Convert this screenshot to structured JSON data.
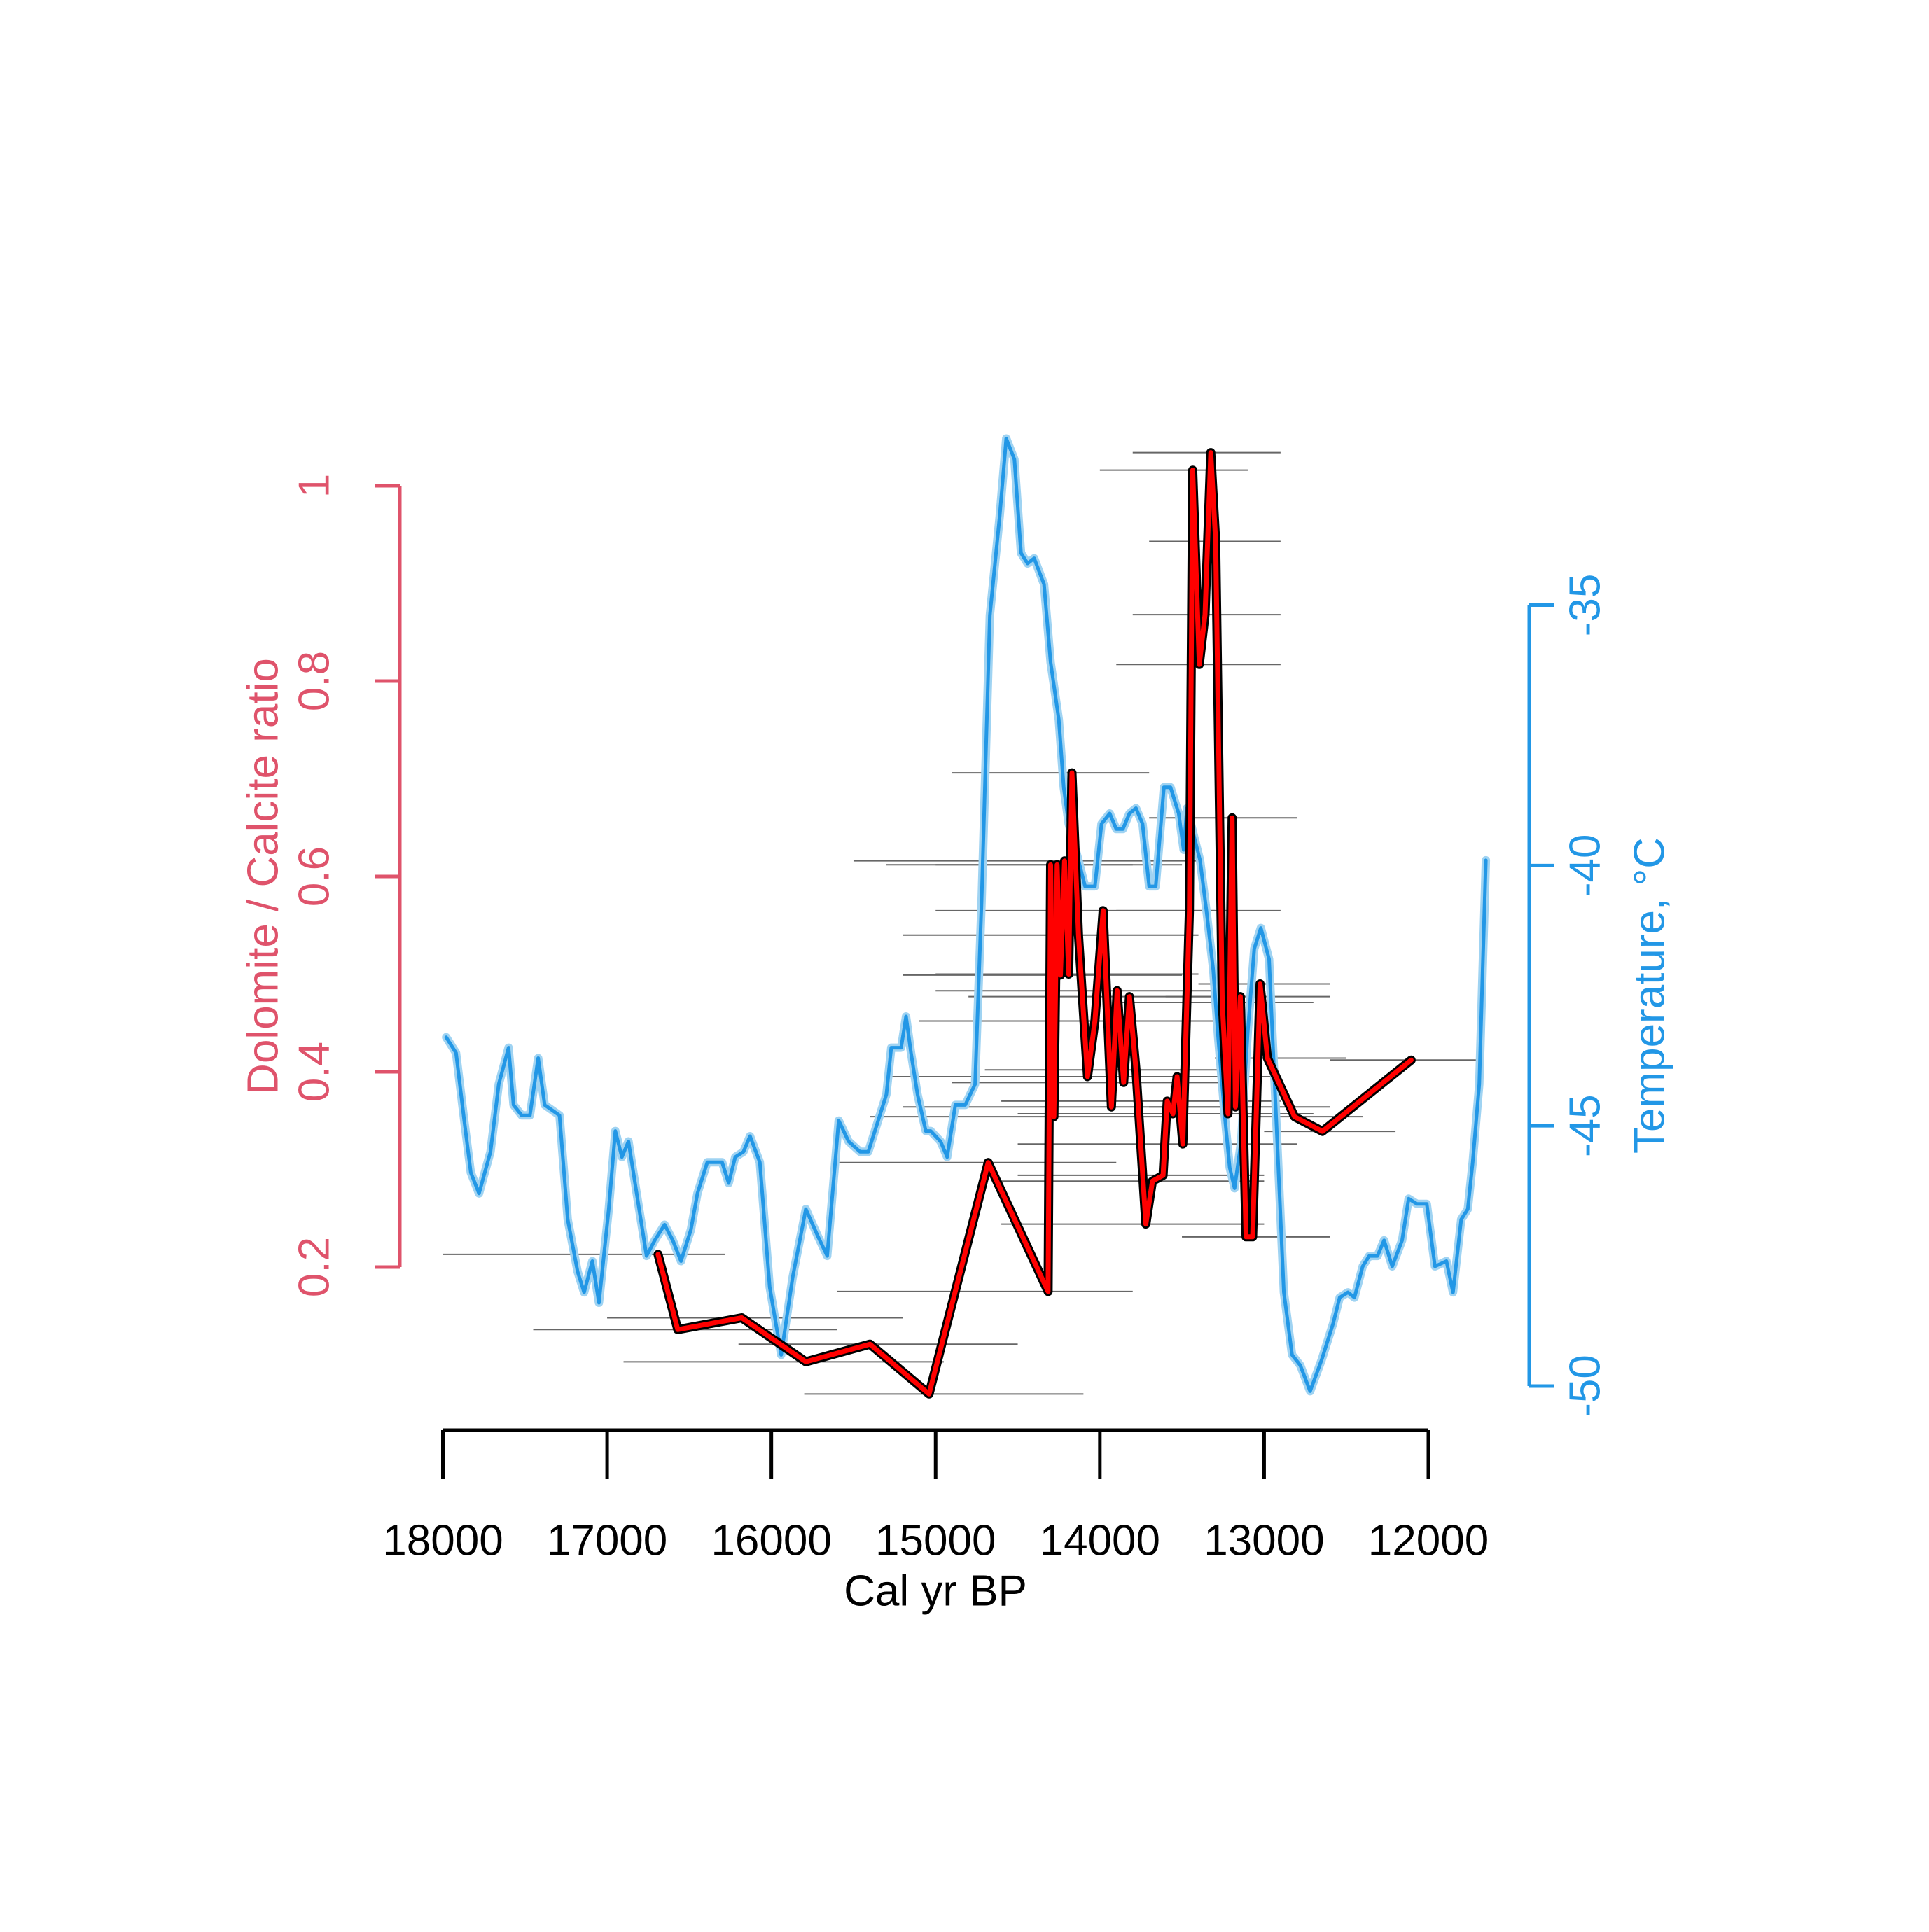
{
  "chart_data": {
    "type": "line",
    "xlabel": "Cal yr BP",
    "ylabel": "Dolomite / Calcite ratio",
    "y2label": "Temperature, °C",
    "xlim": [
      18000,
      12000
    ],
    "xticks": [
      18000,
      17000,
      16000,
      15000,
      14000,
      13000,
      12000
    ],
    "ylim": [
      0.2,
      1
    ],
    "yticks": [
      0.2,
      0.4,
      0.6,
      0.8,
      1
    ],
    "y2lim": [
      -50,
      -35
    ],
    "y2ticks": [
      -50,
      -45,
      -40,
      -35
    ],
    "ycolor": "#DF536B",
    "y2color": "#2297E6",
    "xcolor": "#000000",
    "errorbar_color": "#666666",
    "series": [
      {
        "axis": "y2",
        "color": "#2297E6",
        "outline": "#9fd3f2",
        "x": [
          17980,
          17920,
          17870,
          17830,
          17780,
          17710,
          17660,
          17600,
          17570,
          17520,
          17470,
          17420,
          17380,
          17290,
          17240,
          17180,
          17140,
          17090,
          17050,
          16990,
          16950,
          16910,
          16870,
          16820,
          16760,
          16710,
          16650,
          16600,
          16550,
          16490,
          16450,
          16390,
          16350,
          16300,
          16260,
          16220,
          16170,
          16130,
          16070,
          16010,
          15940,
          15870,
          15790,
          15720,
          15660,
          15590,
          15530,
          15460,
          15410,
          15360,
          15300,
          15270,
          15210,
          15180,
          15150,
          15110,
          15060,
          15030,
          14970,
          14930,
          14880,
          14820,
          14760,
          14720,
          14670,
          14610,
          14570,
          14520,
          14480,
          14440,
          14400,
          14340,
          14300,
          14250,
          14220,
          14190,
          14130,
          14090,
          14030,
          13990,
          13940,
          13900,
          13860,
          13820,
          13780,
          13740,
          13700,
          13660,
          13610,
          13570,
          13520,
          13490,
          13470,
          13430,
          13390,
          13350,
          13310,
          13280,
          13240,
          13210,
          13180,
          13140,
          13100,
          13060,
          13020,
          12970,
          12930,
          12880,
          12830,
          12780,
          12720,
          12650,
          12580,
          12540,
          12490,
          12450,
          12400,
          12360,
          12310,
          12270,
          12220,
          12160,
          12120,
          12070,
          12010,
          11960,
          11890,
          11850,
          11800,
          11760,
          11730,
          11690,
          11650
        ],
        "values": [
          -43.3,
          -43.6,
          -44.9,
          -45.9,
          -46.3,
          -45.5,
          -44.2,
          -43.5,
          -44.6,
          -44.8,
          -44.8,
          -43.7,
          -44.6,
          -44.8,
          -46.8,
          -47.8,
          -48.2,
          -47.6,
          -48.4,
          -46.6,
          -45.1,
          -45.6,
          -45.3,
          -46.3,
          -47.5,
          -47.2,
          -46.9,
          -47.2,
          -47.6,
          -47.0,
          -46.3,
          -45.7,
          -45.7,
          -45.7,
          -46.1,
          -45.6,
          -45.5,
          -45.2,
          -45.7,
          -48.1,
          -49.4,
          -47.9,
          -46.6,
          -47.1,
          -47.5,
          -44.9,
          -45.3,
          -45.5,
          -45.5,
          -45.0,
          -44.4,
          -43.5,
          -43.5,
          -42.9,
          -43.6,
          -44.4,
          -45.1,
          -45.1,
          -45.3,
          -45.6,
          -44.6,
          -44.6,
          -44.2,
          -40.7,
          -35.2,
          -33.3,
          -31.8,
          -32.2,
          -34.0,
          -34.2,
          -34.1,
          -34.6,
          -36.1,
          -37.2,
          -38.5,
          -39.2,
          -39.9,
          -40.4,
          -40.4,
          -39.2,
          -39.0,
          -39.3,
          -39.3,
          -39.0,
          -38.9,
          -39.2,
          -40.4,
          -40.4,
          -38.5,
          -38.5,
          -39.0,
          -39.7,
          -38.9,
          -39.4,
          -39.9,
          -40.9,
          -42.0,
          -43.3,
          -44.8,
          -45.8,
          -46.2,
          -45.3,
          -43.2,
          -41.6,
          -41.2,
          -41.8,
          -44.6,
          -48.2,
          -49.4,
          -49.6,
          -50.1,
          -49.5,
          -48.8,
          -48.3,
          -48.2,
          -48.3,
          -47.7,
          -47.5,
          -47.5,
          -47.2,
          -47.7,
          -47.2,
          -46.4,
          -46.5,
          -46.5,
          -47.7,
          -47.6,
          -48.2,
          -46.8,
          -46.6,
          -45.7,
          -44.2,
          -39.9
        ]
      },
      {
        "color": "#ff0000",
        "outline": "#000000",
        "x": [
          16690,
          16570,
          16180,
          15790,
          15400,
          15040,
          14680,
          14315,
          14300,
          14280,
          14260,
          14240,
          14215,
          14190,
          14170,
          14130,
          14075,
          14030,
          13980,
          13930,
          13895,
          13855,
          13820,
          13780,
          13720,
          13680,
          13615,
          13590,
          13555,
          13530,
          13495,
          13455,
          13435,
          13395,
          13360,
          13325,
          13295,
          13255,
          13220,
          13195,
          13175,
          13145,
          13110,
          13070,
          13025,
          12980,
          12815,
          12645,
          12105
        ],
        "values": [
          0.213,
          0.136,
          0.148,
          0.103,
          0.121,
          0.07,
          0.307,
          0.175,
          0.612,
          0.354,
          0.612,
          0.499,
          0.616,
          0.5,
          0.706,
          0.54,
          0.395,
          0.452,
          0.565,
          0.364,
          0.483,
          0.389,
          0.477,
          0.402,
          0.244,
          0.288,
          0.294,
          0.37,
          0.357,
          0.395,
          0.326,
          0.565,
          1.016,
          0.817,
          0.868,
          1.034,
          0.943,
          0.471,
          0.357,
          0.66,
          0.364,
          0.477,
          0.231,
          0.231,
          0.49,
          0.414,
          0.354,
          0.339,
          0.412
        ],
        "age_range": [
          [
            16280,
            18000
          ],
          [
            15600,
            17450
          ],
          [
            15200,
            17000
          ],
          [
            14950,
            16900
          ],
          [
            14500,
            16200
          ],
          [
            14100,
            15800
          ],
          [
            13900,
            15600
          ],
          [
            13800,
            15600
          ],
          [
            13800,
            15000
          ],
          [
            13600,
            15400
          ],
          [
            13500,
            15300
          ],
          [
            13500,
            15200
          ],
          [
            13400,
            15500
          ],
          [
            13400,
            15000
          ],
          [
            13700,
            14900
          ],
          [
            13400,
            15200
          ],
          [
            13300,
            15300
          ],
          [
            13300,
            15100
          ],
          [
            13300,
            15000
          ],
          [
            13200,
            15200
          ],
          [
            13200,
            15000
          ],
          [
            13200,
            14900
          ],
          [
            13100,
            14800
          ],
          [
            13100,
            14700
          ],
          [
            13000,
            14600
          ],
          [
            13000,
            14600
          ],
          [
            13000,
            14500
          ],
          [
            12900,
            14600
          ],
          [
            12900,
            14500
          ],
          [
            12900,
            14400
          ],
          [
            12800,
            14500
          ],
          [
            12900,
            13900
          ],
          [
            13100,
            14000
          ],
          [
            12900,
            13900
          ],
          [
            12900,
            13800
          ],
          [
            12900,
            13800
          ],
          [
            12900,
            13700
          ],
          [
            12700,
            13900
          ],
          [
            12700,
            13800
          ],
          [
            12800,
            13700
          ],
          [
            12600,
            13700
          ],
          [
            12600,
            13600
          ],
          [
            12600,
            13500
          ],
          [
            12600,
            13500
          ],
          [
            12600,
            13400
          ],
          [
            12500,
            13300
          ],
          [
            12400,
            13100
          ],
          [
            12200,
            13000
          ],
          [
            11700,
            12600
          ]
        ]
      }
    ]
  }
}
